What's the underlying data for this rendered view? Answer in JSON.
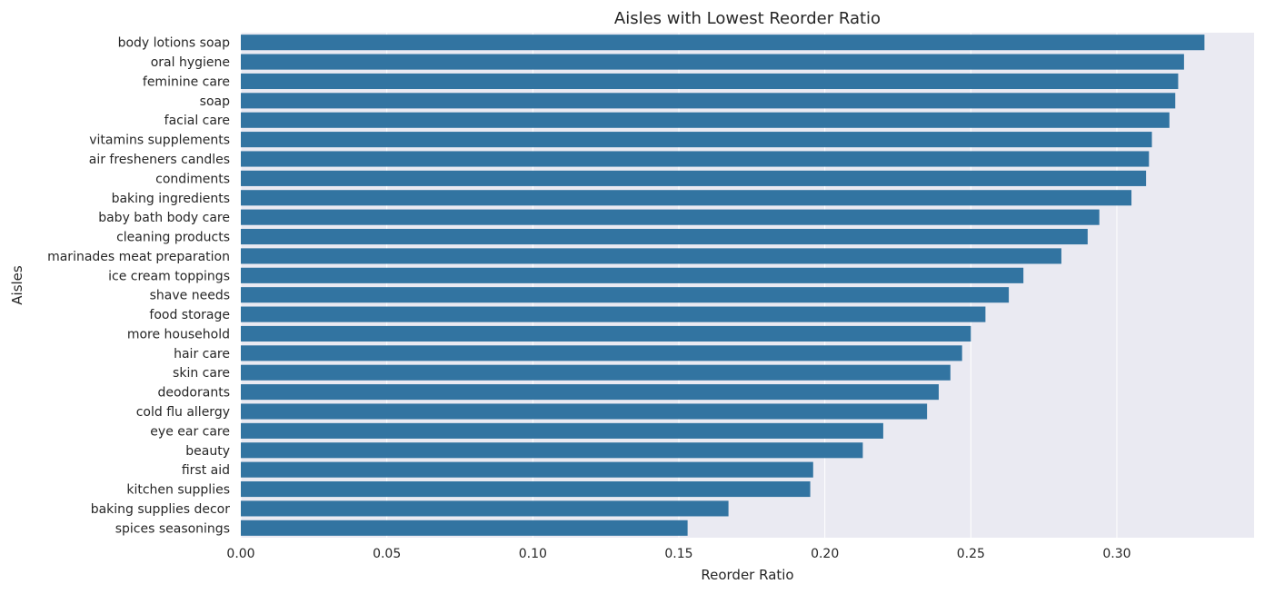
{
  "chart_data": {
    "type": "bar",
    "orientation": "horizontal",
    "title": "Aisles with Lowest Reorder Ratio",
    "xlabel": "Reorder Ratio",
    "ylabel": "Aisles",
    "xlim": [
      0,
      0.347
    ],
    "xticks": [
      "0.00",
      "0.05",
      "0.10",
      "0.15",
      "0.20",
      "0.25",
      "0.30"
    ],
    "grid": true,
    "categories": [
      "body lotions soap",
      "oral hygiene",
      "feminine care",
      "soap",
      "facial care",
      "vitamins supplements",
      "air fresheners candles",
      "condiments",
      "baking ingredients",
      "baby bath body care",
      "cleaning products",
      "marinades meat preparation",
      "ice cream toppings",
      "shave needs",
      "food storage",
      "more household",
      "hair care",
      "skin care",
      "deodorants",
      "cold flu allergy",
      "eye ear care",
      "beauty",
      "first aid",
      "kitchen supplies",
      "baking supplies decor",
      "spices seasonings"
    ],
    "values": [
      0.33,
      0.323,
      0.321,
      0.32,
      0.318,
      0.312,
      0.311,
      0.31,
      0.305,
      0.294,
      0.29,
      0.281,
      0.268,
      0.263,
      0.255,
      0.25,
      0.247,
      0.243,
      0.239,
      0.235,
      0.22,
      0.213,
      0.196,
      0.195,
      0.167,
      0.153
    ],
    "colors": {
      "bar": "#3274a1",
      "background": "#eaeaf2",
      "grid": "#ffffff",
      "text": "#262626"
    }
  }
}
